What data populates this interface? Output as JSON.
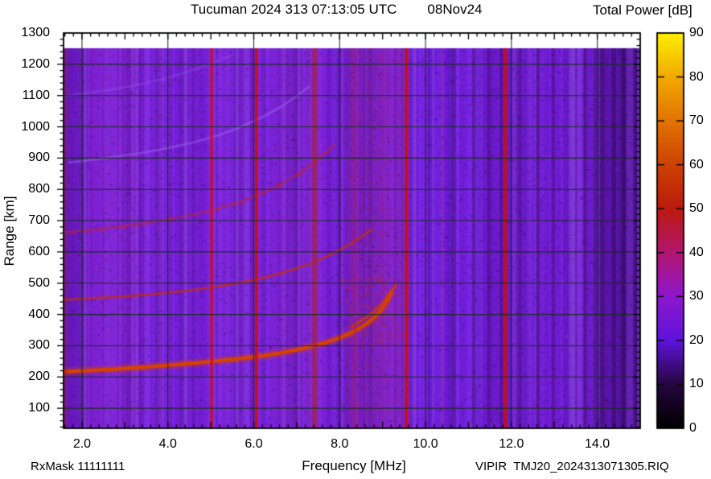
{
  "header": {
    "title_station_time": "Tucuman 2024 313 07:13:05 UTC",
    "title_date": "08Nov24",
    "colorbar_title": "Total Power [dB]"
  },
  "footer": {
    "rx_mask": "RxMask 11111111",
    "file_id": "VIPIR  TMJ20_2024313071305.RIQ"
  },
  "chart_data": {
    "type": "heatmap",
    "title": "Tucuman 2024 313 07:13:05 UTC  08Nov24",
    "xlabel": "Frequency [MHz]",
    "ylabel": "Range [km]",
    "xlim": [
      1.57,
      15.0
    ],
    "ylim": [
      36,
      1300
    ],
    "data_top_km": 1252,
    "x_minor_step": 0.2,
    "y_minor_step": 20,
    "xticks": [
      2,
      4,
      6,
      8,
      10,
      12,
      14
    ],
    "xtick_labels": [
      "2.0",
      "4.0",
      "6.0",
      "8.0",
      "10.0",
      "12.0",
      "14.0"
    ],
    "yticks": [
      100,
      200,
      300,
      400,
      500,
      600,
      700,
      800,
      900,
      1000,
      1100,
      1200,
      1300
    ],
    "ytick_labels": [
      "100",
      "200",
      "300",
      "400",
      "500",
      "600",
      "700",
      "800",
      "900",
      "1000",
      "1100",
      "1200",
      "1300"
    ],
    "grid": {
      "x_step_mhz": 2,
      "y_step_km": 100,
      "color": "#143014"
    },
    "background": {
      "base_color": "#7a20df"
    },
    "colorbar": {
      "label": "Total Power [dB]",
      "min": 0,
      "max": 90,
      "ticks": [
        0,
        10,
        20,
        30,
        40,
        50,
        60,
        70,
        80,
        90
      ],
      "tick_labels": [
        "0",
        "10",
        "20",
        "30",
        "40",
        "50",
        "60",
        "70",
        "80",
        "90"
      ],
      "stops": [
        [
          0,
          "#000000"
        ],
        [
          10,
          "#26063e"
        ],
        [
          20,
          "#5f13dc"
        ],
        [
          30,
          "#8e17cc"
        ],
        [
          40,
          "#b21670"
        ],
        [
          50,
          "#bc1a0e"
        ],
        [
          60,
          "#cc4200"
        ],
        [
          70,
          "#e27400"
        ],
        [
          80,
          "#f2aa00"
        ],
        [
          90,
          "#ffef00"
        ]
      ]
    },
    "echo_traces": [
      {
        "name": "F-echo 5th multiple (very faint)",
        "color": "#9a62e8",
        "w": 3,
        "a": 0.28,
        "points": [
          [
            1.57,
            1098
          ],
          [
            2.5,
            1114
          ],
          [
            3.4,
            1136
          ],
          [
            4.2,
            1164
          ],
          [
            4.9,
            1196
          ],
          [
            5.5,
            1230
          ]
        ]
      },
      {
        "name": "F-echo 4th multiple (faint)",
        "color": "#a26df0",
        "w": 3,
        "a": 0.4,
        "points": [
          [
            1.7,
            886
          ],
          [
            2.8,
            904
          ],
          [
            3.9,
            928
          ],
          [
            4.9,
            960
          ],
          [
            5.7,
            998
          ],
          [
            6.4,
            1044
          ],
          [
            6.95,
            1092
          ],
          [
            7.3,
            1130
          ]
        ]
      },
      {
        "name": "F-echo 3rd multiple",
        "color": "#bd2830",
        "w": 2.5,
        "a": 0.5,
        "speckle": true,
        "points": [
          [
            1.57,
            663
          ],
          [
            2.6,
            676
          ],
          [
            3.7,
            696
          ],
          [
            4.7,
            722
          ],
          [
            5.6,
            756
          ],
          [
            6.3,
            794
          ],
          [
            6.9,
            838
          ],
          [
            7.45,
            890
          ],
          [
            7.9,
            945
          ]
        ]
      },
      {
        "name": "F-echo 2nd multiple",
        "color": "#c23108",
        "w": 3,
        "a": 0.7,
        "points": [
          [
            1.57,
            447
          ],
          [
            2.5,
            453
          ],
          [
            3.5,
            463
          ],
          [
            4.5,
            477
          ],
          [
            5.4,
            494
          ],
          [
            6.2,
            516
          ],
          [
            6.9,
            542
          ],
          [
            7.5,
            572
          ],
          [
            8.0,
            605
          ],
          [
            8.45,
            642
          ],
          [
            8.75,
            672
          ]
        ]
      },
      {
        "name": "F-echo X-mode branch",
        "color": "#cf3d00",
        "w": 3,
        "a": 0.8,
        "points": [
          [
            8.3,
            362
          ],
          [
            8.7,
            398
          ],
          [
            9.0,
            436
          ],
          [
            9.2,
            472
          ],
          [
            9.32,
            495
          ]
        ]
      },
      {
        "name": "F-echo main trace",
        "color": "#d64200",
        "w": 4.5,
        "a": 1.0,
        "halo": true,
        "points": [
          [
            1.57,
            217
          ],
          [
            2.2,
            221
          ],
          [
            3.0,
            227
          ],
          [
            4.0,
            237
          ],
          [
            5.0,
            249
          ],
          [
            6.0,
            263
          ],
          [
            6.8,
            281
          ],
          [
            7.4,
            299
          ],
          [
            7.9,
            319
          ],
          [
            8.3,
            343
          ],
          [
            8.65,
            371
          ],
          [
            8.9,
            402
          ],
          [
            9.05,
            430
          ],
          [
            9.15,
            455
          ],
          [
            9.2,
            470
          ]
        ]
      }
    ],
    "rfi_lines": [
      {
        "f": 1.63,
        "w": 2,
        "color": "#b01616",
        "a": 0.5
      },
      {
        "f": 5.02,
        "w": 10,
        "color": "#9a40d8",
        "a": 0.25
      },
      {
        "f": 5.02,
        "w": 3,
        "color": "#cc0e0e",
        "a": 0.95
      },
      {
        "f": 6.06,
        "w": 10,
        "color": "#9a40d8",
        "a": 0.2
      },
      {
        "f": 6.06,
        "w": 3.5,
        "color": "#cc0e0e",
        "a": 0.95
      },
      {
        "f": 7.42,
        "w": 10,
        "color": "#a02878",
        "a": 0.28
      },
      {
        "f": 7.42,
        "w": 6,
        "color": "#a8203e",
        "a": 0.55
      },
      {
        "f": 8.36,
        "w": 2,
        "color": "#bb1726",
        "a": 0.6
      },
      {
        "f": 9.02,
        "w": 2,
        "color": "#c23058",
        "a": 0.35
      },
      {
        "f": 9.56,
        "w": 13,
        "color": "#93279e",
        "a": 0.3
      },
      {
        "f": 9.56,
        "w": 3.5,
        "color": "#cc0d0d",
        "a": 0.95
      },
      {
        "f": 10.4,
        "w": 1.5,
        "color": "#b03070",
        "a": 0.35
      },
      {
        "f": 11.86,
        "w": 9,
        "color": "#7a1890",
        "a": 0.3
      },
      {
        "f": 11.86,
        "w": 3.5,
        "color": "#cc0d0d",
        "a": 0.95
      }
    ],
    "bands": [
      {
        "f0": 1.57,
        "f1": 2.05,
        "color": "#4b0c9c",
        "a": 0.4
      },
      {
        "f0": 2.05,
        "f1": 3.35,
        "color": "#8826c2",
        "a": 0.22
      },
      {
        "f0": 3.35,
        "f1": 4.7,
        "color": "#6d18d8",
        "a": 0.12
      },
      {
        "f0": 6.45,
        "f1": 7.65,
        "color": "#8d2cc0",
        "a": 0.16
      },
      {
        "f0": 8.15,
        "f1": 9.5,
        "color": "#99289a",
        "a": 0.22
      },
      {
        "f0": 9.6,
        "f1": 11.35,
        "color": "#6b1cec",
        "a": 0.35
      },
      {
        "f0": 11.35,
        "f1": 13.9,
        "color": "#5a12c4",
        "a": 0.22
      },
      {
        "f0": 13.9,
        "f1": 15.0,
        "color": "#3d0880",
        "a": 0.5
      }
    ],
    "light_columns": {
      "color": "#aa78ff",
      "items": [
        [
          2.08,
          4,
          0.22
        ],
        [
          4.42,
          5,
          0.28
        ],
        [
          5.62,
          4,
          0.28
        ],
        [
          7.06,
          4,
          0.22
        ],
        [
          9.74,
          5,
          0.28
        ],
        [
          10.18,
          4,
          0.18
        ],
        [
          13.42,
          7,
          0.32
        ],
        [
          13.56,
          4,
          0.22
        ],
        [
          14.97,
          5,
          0.28
        ]
      ]
    },
    "dark_columns": {
      "color": "#20083c",
      "items": [
        [
          3.75,
          5,
          0.18
        ],
        [
          10.66,
          5,
          0.3
        ],
        [
          11.13,
          4,
          0.32
        ],
        [
          11.47,
          4,
          0.28
        ],
        [
          11.76,
          3,
          0.3
        ],
        [
          12.17,
          5,
          0.3
        ],
        [
          12.62,
          4,
          0.32
        ],
        [
          12.97,
          4,
          0.3
        ],
        [
          13.72,
          4,
          0.3
        ],
        [
          14.12,
          5,
          0.4
        ],
        [
          14.38,
          5,
          0.35
        ],
        [
          14.62,
          5,
          0.4
        ],
        [
          14.88,
          5,
          0.35
        ]
      ]
    },
    "noise_regions": [
      {
        "f0": 1.57,
        "f1": 3.4,
        "color": "#c02898",
        "count": 1700,
        "a": 0.13
      },
      {
        "f0": 3.4,
        "f1": 4.9,
        "color": "#b02488",
        "count": 550,
        "a": 0.09
      },
      {
        "f0": 4.9,
        "f1": 6.45,
        "color": "#b82890",
        "count": 350,
        "a": 0.07
      },
      {
        "f0": 6.45,
        "f1": 7.75,
        "color": "#c02898",
        "count": 800,
        "a": 0.11
      },
      {
        "f0": 8.15,
        "f1": 9.55,
        "color": "#c0246a",
        "count": 1300,
        "a": 0.13
      },
      {
        "f0": 8.15,
        "f1": 9.55,
        "color": "#cc1d1d",
        "count": 500,
        "a": 0.2
      },
      {
        "f0": 8.0,
        "f1": 9.6,
        "r0": 300,
        "r1": 530,
        "color": "#cc2d12",
        "count": 320,
        "a": 0.3
      },
      {
        "f0": 9.6,
        "f1": 15.0,
        "color": "#38085f",
        "count": 2000,
        "a": 0.12
      }
    ]
  }
}
